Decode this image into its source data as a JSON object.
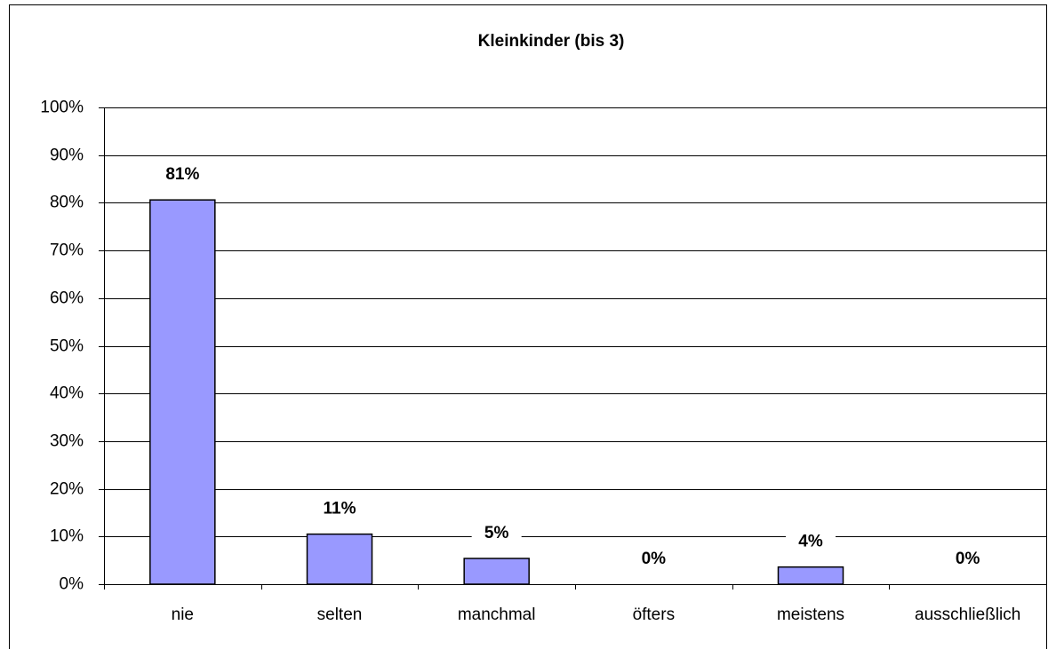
{
  "chart_data": {
    "type": "bar",
    "title": "Kleinkinder (bis 3)",
    "categories": [
      "nie",
      "selten",
      "manchmal",
      "öfters",
      "meistens",
      "ausschließlich"
    ],
    "values": [
      80.6,
      10.5,
      5.4,
      0,
      3.6,
      0
    ],
    "value_labels": [
      "81%",
      "11%",
      "5%",
      "0%",
      "4%",
      "0%"
    ],
    "color": "#9999ff",
    "ylim": [
      0,
      100
    ],
    "yticks": [
      {
        "value": 0,
        "label": "0%"
      },
      {
        "value": 10,
        "label": "10%"
      },
      {
        "value": 20,
        "label": "20%"
      },
      {
        "value": 30,
        "label": "30%"
      },
      {
        "value": 40,
        "label": "40%"
      },
      {
        "value": 50,
        "label": "50%"
      },
      {
        "value": 60,
        "label": "60%"
      },
      {
        "value": 70,
        "label": "70%"
      },
      {
        "value": 80,
        "label": "80%"
      },
      {
        "value": 90,
        "label": "90%"
      },
      {
        "value": 100,
        "label": "100%"
      }
    ],
    "grid": true
  }
}
